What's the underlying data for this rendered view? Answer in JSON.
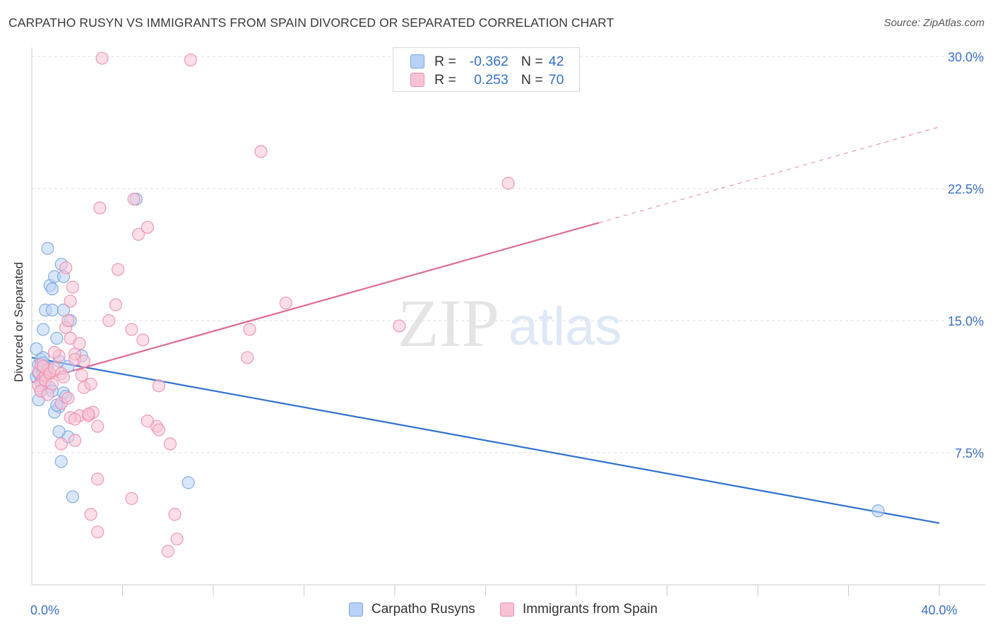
{
  "title": "CARPATHO RUSYN VS IMMIGRANTS FROM SPAIN DIVORCED OR SEPARATED CORRELATION CHART",
  "source": "Source: ZipAtlas.com",
  "watermark": {
    "zip": "ZIP",
    "atlas": "atlas"
  },
  "colors": {
    "blue": "#7aa6e6",
    "blue_fill": "#b9d1f5",
    "blue_line": "#2f72d0",
    "pink": "#ee8fae",
    "pink_fill": "#f7c3d4",
    "pink_line": "#e06a94",
    "axis_label": "#3a70c6",
    "grid": "#dddddd"
  },
  "stats": {
    "r_label": "R =",
    "n_label": "N =",
    "rows": [
      {
        "r": "-0.362",
        "n": "42"
      },
      {
        "r": "0.253",
        "n": "70"
      }
    ]
  },
  "chart_data": {
    "type": "scatter",
    "ylabel": "Divorced or Separated",
    "xlim": [
      0,
      40
    ],
    "ylim": [
      0,
      30.8
    ],
    "x_tick_labels": [
      {
        "value": 0,
        "label": "0.0%"
      },
      {
        "value": 40,
        "label": "40.0%"
      }
    ],
    "y_tick_labels": [
      {
        "value": 7.5,
        "label": "7.5%"
      },
      {
        "value": 15,
        "label": "15.0%"
      },
      {
        "value": 22.5,
        "label": "22.5%"
      },
      {
        "value": 30,
        "label": "30.0%"
      }
    ],
    "x_minor_ticks": [
      4,
      8,
      12,
      16,
      20,
      24,
      28,
      32,
      36,
      40
    ],
    "series": [
      {
        "name": "Carpatho Rusyns",
        "color_key": "blue",
        "trend": {
          "x0": 0,
          "y0": 12.9,
          "x1": 40,
          "y1": 3.5,
          "solid_until": 40
        },
        "points": [
          [
            0.3,
            12.5
          ],
          [
            0.4,
            12.8
          ],
          [
            0.2,
            11.8
          ],
          [
            0.5,
            12.9
          ],
          [
            0.3,
            12.0
          ],
          [
            0.6,
            12.2
          ],
          [
            0.4,
            11.5
          ],
          [
            0.5,
            12.1
          ],
          [
            0.3,
            10.5
          ],
          [
            0.4,
            11.0
          ],
          [
            0.7,
            12.3
          ],
          [
            0.8,
            11.2
          ],
          [
            0.2,
            13.4
          ],
          [
            0.5,
            14.5
          ],
          [
            0.6,
            15.6
          ],
          [
            0.9,
            15.6
          ],
          [
            0.8,
            17.0
          ],
          [
            0.9,
            16.8
          ],
          [
            0.7,
            19.1
          ],
          [
            1.0,
            17.5
          ],
          [
            1.4,
            17.5
          ],
          [
            1.3,
            18.2
          ],
          [
            1.1,
            14.0
          ],
          [
            1.4,
            15.6
          ],
          [
            1.2,
            12.7
          ],
          [
            1.6,
            12.4
          ],
          [
            1.4,
            10.9
          ],
          [
            1.5,
            10.7
          ],
          [
            1.2,
            10.1
          ],
          [
            1.0,
            9.8
          ],
          [
            1.1,
            10.2
          ],
          [
            1.7,
            15.0
          ],
          [
            2.2,
            13.0
          ],
          [
            1.6,
            8.4
          ],
          [
            1.2,
            8.7
          ],
          [
            1.3,
            7.0
          ],
          [
            1.8,
            5.0
          ],
          [
            4.6,
            21.9
          ],
          [
            6.9,
            5.8
          ],
          [
            37.3,
            4.2
          ],
          [
            0.5,
            12.6
          ],
          [
            0.9,
            11.0
          ]
        ]
      },
      {
        "name": "Immigrants from Spain",
        "color_key": "pink",
        "trend": {
          "x0": 0,
          "y0": 11.5,
          "x1": 40,
          "y1": 26.0,
          "solid_until": 25
        },
        "points": [
          [
            0.3,
            12.1
          ],
          [
            0.4,
            12.5
          ],
          [
            0.5,
            11.7
          ],
          [
            0.6,
            11.9
          ],
          [
            0.3,
            11.3
          ],
          [
            0.7,
            12.2
          ],
          [
            0.4,
            11.0
          ],
          [
            0.5,
            12.4
          ],
          [
            0.6,
            11.6
          ],
          [
            0.8,
            12.0
          ],
          [
            0.9,
            11.4
          ],
          [
            0.7,
            10.8
          ],
          [
            1.0,
            12.3
          ],
          [
            1.2,
            13.0
          ],
          [
            1.3,
            12.0
          ],
          [
            1.4,
            11.8
          ],
          [
            1.5,
            14.6
          ],
          [
            1.6,
            15.0
          ],
          [
            1.7,
            16.1
          ],
          [
            1.8,
            16.9
          ],
          [
            1.5,
            18.0
          ],
          [
            1.7,
            14.0
          ],
          [
            1.9,
            13.1
          ],
          [
            2.1,
            13.7
          ],
          [
            1.9,
            12.8
          ],
          [
            2.2,
            11.9
          ],
          [
            2.3,
            11.2
          ],
          [
            2.6,
            11.4
          ],
          [
            2.1,
            9.6
          ],
          [
            1.7,
            9.5
          ],
          [
            1.9,
            9.4
          ],
          [
            2.5,
            9.6
          ],
          [
            2.3,
            12.7
          ],
          [
            1.3,
            10.3
          ],
          [
            1.6,
            10.6
          ],
          [
            1.3,
            8.0
          ],
          [
            1.9,
            8.2
          ],
          [
            2.7,
            9.8
          ],
          [
            2.9,
            9.0
          ],
          [
            2.5,
            9.7
          ],
          [
            3.4,
            15.0
          ],
          [
            3.8,
            17.9
          ],
          [
            3.7,
            15.9
          ],
          [
            4.4,
            14.5
          ],
          [
            4.9,
            13.9
          ],
          [
            4.7,
            19.9
          ],
          [
            5.1,
            20.3
          ],
          [
            4.5,
            21.9
          ],
          [
            3.0,
            21.4
          ],
          [
            2.9,
            6.0
          ],
          [
            2.6,
            4.0
          ],
          [
            2.9,
            3.0
          ],
          [
            4.4,
            4.9
          ],
          [
            5.6,
            11.3
          ],
          [
            5.5,
            9.0
          ],
          [
            5.1,
            9.3
          ],
          [
            5.6,
            8.8
          ],
          [
            6.1,
            8.0
          ],
          [
            6.3,
            4.0
          ],
          [
            6.4,
            2.6
          ],
          [
            6.0,
            1.9
          ],
          [
            3.1,
            29.9
          ],
          [
            7.0,
            29.8
          ],
          [
            10.1,
            24.6
          ],
          [
            11.2,
            16.0
          ],
          [
            9.6,
            14.5
          ],
          [
            9.5,
            12.9
          ],
          [
            16.2,
            14.7
          ],
          [
            21.0,
            22.8
          ],
          [
            1.0,
            13.2
          ]
        ]
      }
    ]
  },
  "legend": {
    "items": [
      "Carpatho Rusyns",
      "Immigrants from Spain"
    ],
    "position": "bottom-center"
  }
}
